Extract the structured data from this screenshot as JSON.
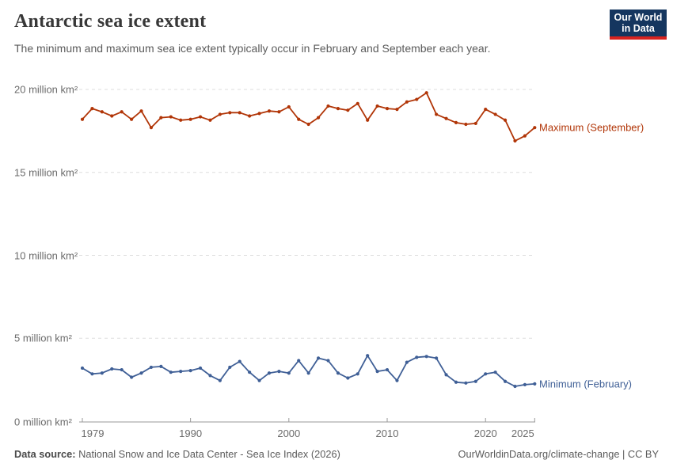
{
  "header": {
    "title": "Antarctic sea ice extent",
    "subtitle": "The minimum and maximum sea ice extent typically occur in February and September each year.",
    "logo": {
      "line1": "Our World",
      "line2": "in Data",
      "navy": "#15365f",
      "red": "#d8231f"
    }
  },
  "chart_data": {
    "type": "line",
    "title": "Antarctic sea ice extent",
    "xlabel": "",
    "ylabel": "million km²",
    "xlim": [
      1979,
      2025
    ],
    "ylim": [
      0,
      20
    ],
    "grid": "horizontal-dashed",
    "legend_position": "right-of-line-end",
    "x": [
      1979,
      1980,
      1981,
      1982,
      1983,
      1984,
      1985,
      1986,
      1987,
      1988,
      1989,
      1990,
      1991,
      1992,
      1993,
      1994,
      1995,
      1996,
      1997,
      1998,
      1999,
      2000,
      2001,
      2002,
      2003,
      2004,
      2005,
      2006,
      2007,
      2008,
      2009,
      2010,
      2011,
      2012,
      2013,
      2014,
      2015,
      2016,
      2017,
      2018,
      2019,
      2020,
      2021,
      2022,
      2023,
      2024,
      2025
    ],
    "series": [
      {
        "name": "Maximum (September)",
        "color": "#b13507",
        "values": [
          18.2,
          18.85,
          18.65,
          18.4,
          18.65,
          18.2,
          18.7,
          17.7,
          18.3,
          18.35,
          18.15,
          18.2,
          18.35,
          18.15,
          18.5,
          18.6,
          18.6,
          18.4,
          18.55,
          18.7,
          18.65,
          18.95,
          18.2,
          17.9,
          18.3,
          19.0,
          18.85,
          18.75,
          19.15,
          18.15,
          19.0,
          18.85,
          18.8,
          19.25,
          19.4,
          19.8,
          18.5,
          18.25,
          18.0,
          17.9,
          17.95,
          18.8,
          18.5,
          18.15,
          16.9,
          17.2,
          17.7
        ]
      },
      {
        "name": "Minimum (February)",
        "color": "#3f5f96",
        "values": [
          3.2,
          2.85,
          2.9,
          3.15,
          3.1,
          2.65,
          2.9,
          3.25,
          3.3,
          2.95,
          3.0,
          3.05,
          3.2,
          2.75,
          2.45,
          3.25,
          3.6,
          2.95,
          2.45,
          2.9,
          3.0,
          2.9,
          3.65,
          2.9,
          3.8,
          3.65,
          2.9,
          2.6,
          2.85,
          3.95,
          3.0,
          3.1,
          2.45,
          3.55,
          3.85,
          3.9,
          3.8,
          2.8,
          2.35,
          2.3,
          2.4,
          2.85,
          2.95,
          2.4,
          2.1,
          2.2,
          2.25
        ]
      }
    ],
    "y_ticks": [
      0,
      5,
      10,
      15,
      20
    ],
    "y_tick_labels": [
      "0 million km²",
      "5 million km²",
      "10 million km²",
      "15 million km²",
      "20 million km²"
    ],
    "x_ticks": [
      1979,
      1990,
      2000,
      2010,
      2020,
      2025
    ],
    "x_tick_labels": [
      "1979",
      "1990",
      "2000",
      "2010",
      "2020",
      "2025"
    ]
  },
  "footer": {
    "source_label": "Data source:",
    "source_text": " National Snow and Ice Data Center - Sea Ice Index (2026)",
    "credit": "OurWorldinData.org/climate-change | CC BY"
  }
}
